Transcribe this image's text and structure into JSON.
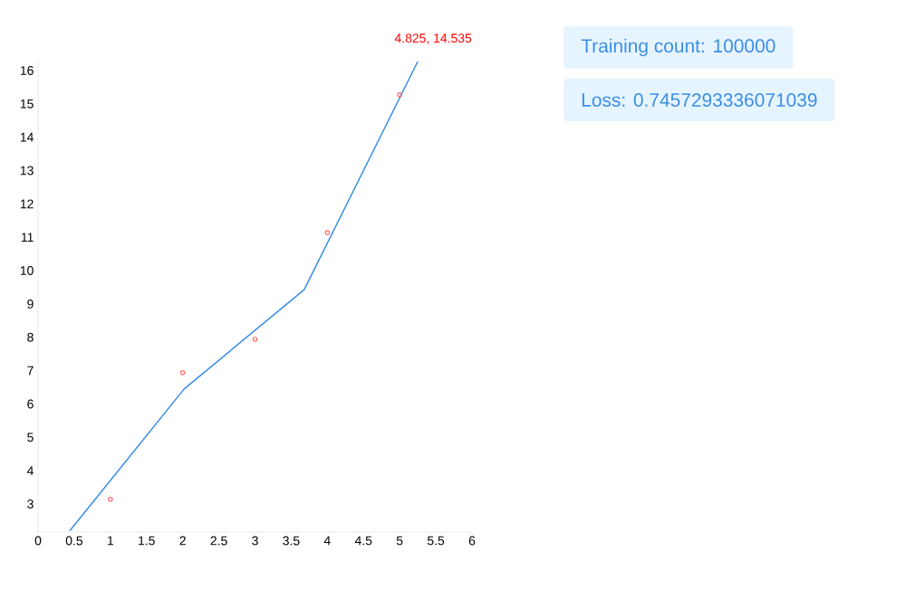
{
  "chart_data": {
    "type": "line",
    "series": [
      {
        "color": "#3a8ee6",
        "x": [
          0.44,
          2.02,
          3.68,
          5.25
        ],
        "values": [
          2.2,
          6.45,
          9.43,
          16.27
        ]
      },
      {
        "type": "scatter",
        "color": "#ff6b6b",
        "marker": "circle",
        "x": [
          1,
          2,
          3,
          4,
          5
        ],
        "values": [
          3.14,
          6.94,
          7.94,
          11.14,
          15.27
        ]
      }
    ],
    "xlim": [
      0,
      6
    ],
    "ylim": [
      2.16,
      16.27
    ],
    "xticks": [
      0,
      0.5,
      1,
      1.5,
      2,
      2.5,
      3,
      3.5,
      4,
      4.5,
      5,
      5.5,
      6
    ],
    "yticks": [
      3,
      4,
      5,
      6,
      7,
      8,
      9,
      10,
      11,
      12,
      13,
      14,
      15,
      16
    ],
    "grid": false,
    "annotations": [
      "4.825, 14.535",
      "Training count: 100000",
      "Loss: 0.7457293336071039"
    ]
  }
}
